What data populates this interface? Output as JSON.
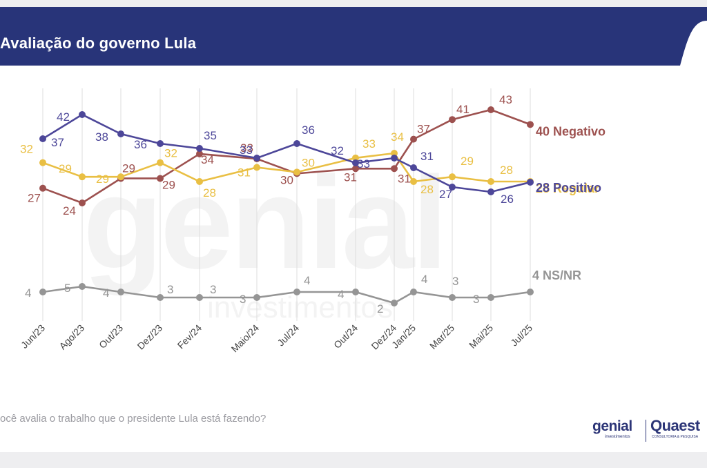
{
  "header": {
    "title": "Avaliação do governo Lula"
  },
  "footer": {
    "question": "ocê avalia o trabalho que o presidente Lula está fazendo?"
  },
  "logos": {
    "genial": "genial",
    "genial_sub": "investimentos",
    "quaest": "Quaest",
    "quaest_sub": "CONSULTORIA & PESQUISA"
  },
  "watermark": {
    "big": "genial",
    "small": "investimentos"
  },
  "colors": {
    "header": "#283479",
    "negativo": "#9d514f",
    "regular": "#e9bf43",
    "positivo": "#4d4799",
    "nsnr": "#959595",
    "gridline": "#dcdcdc"
  },
  "chart_data": {
    "type": "line",
    "x": [
      "Jun/23",
      "Ago/23",
      "Out/23",
      "Dez/23",
      "Fev/24",
      "Maio/24",
      "Jul/24",
      "Out/24",
      "Dez/24",
      "Jan/25",
      "Mar/25",
      "Mai/25",
      "Jul/25"
    ],
    "series": [
      {
        "key": "negativo",
        "name": "Negativo",
        "end_label": "40 Negativo",
        "points": [
          [
            "Jun/23",
            27
          ],
          [
            "Ago/23",
            24
          ],
          [
            "Out/23",
            29
          ],
          [
            "Dez/23",
            29
          ],
          [
            "Fev/24",
            34
          ],
          [
            "Maio/24",
            33
          ],
          [
            "Jul/24",
            30
          ],
          [
            "Out/24",
            31
          ],
          [
            "Dez/24",
            31
          ],
          [
            "Jan/25",
            37
          ],
          [
            "Mar/25",
            41
          ],
          [
            "Mai/25",
            43
          ],
          [
            "Jul/25",
            40
          ]
        ],
        "labels": [
          "27",
          "24",
          "29",
          "29",
          "34",
          "33",
          "30",
          "31",
          "31",
          "37",
          "41",
          "43"
        ]
      },
      {
        "key": "regular",
        "name": "Regular",
        "end_label": "28 Regular",
        "points": [
          [
            "Jun/23",
            32
          ],
          [
            "Ago/23",
            29
          ],
          [
            "Out/23",
            29
          ],
          [
            "Dez/23",
            32
          ],
          [
            "Fev/24",
            28
          ],
          [
            "Maio/24",
            31
          ],
          [
            "Jul/24",
            30
          ],
          [
            "Out/24",
            33
          ],
          [
            "Dez/24",
            34
          ],
          [
            "Jan/25",
            28
          ],
          [
            "Mar/25",
            29
          ],
          [
            "Mai/25",
            28
          ],
          [
            "Jul/25",
            28
          ]
        ],
        "labels": [
          "32",
          "29",
          "29",
          "32",
          "28",
          "31",
          "30",
          "33",
          "34",
          "28",
          "29",
          "28"
        ]
      },
      {
        "key": "positivo",
        "name": "Positivo",
        "end_label": "28 Positivo",
        "points": [
          [
            "Jun/23",
            37
          ],
          [
            "Ago/23",
            42
          ],
          [
            "Out/23",
            38
          ],
          [
            "Dez/23",
            36
          ],
          [
            "Fev/24",
            35
          ],
          [
            "Maio/24",
            33
          ],
          [
            "Jul/24",
            36
          ],
          [
            "Out/24",
            32
          ],
          [
            "Dez/24",
            33
          ],
          [
            "Jan/25",
            31
          ],
          [
            "Mar/25",
            27
          ],
          [
            "Mai/25",
            26
          ],
          [
            "Jul/25",
            28
          ]
        ],
        "labels": [
          "37",
          "42",
          "38",
          "36",
          "35",
          "33",
          "36",
          "32",
          "33",
          "31",
          "27",
          "26"
        ]
      },
      {
        "key": "nsnr",
        "name": "NS/NR",
        "end_label": "4 NS/NR",
        "points": [
          [
            "Jun/23",
            4
          ],
          [
            "Ago/23",
            5
          ],
          [
            "Out/23",
            4
          ],
          [
            "Dez/23",
            3
          ],
          [
            "Fev/24",
            3
          ],
          [
            "Maio/24",
            3
          ],
          [
            "Jul/24",
            4
          ],
          [
            "Out/24",
            4
          ],
          [
            "Dez/24",
            2
          ],
          [
            "Jan/25",
            4
          ],
          [
            "Mar/25",
            3
          ],
          [
            "Mai/25",
            3
          ],
          [
            "Jul/25",
            4
          ]
        ],
        "labels": [
          "4",
          "5",
          "4",
          "3",
          "3",
          "3",
          "4",
          "4",
          "2",
          "4",
          "3",
          "3"
        ]
      }
    ],
    "ylim": [
      0,
      45
    ],
    "grid": true,
    "legend": "end-of-line labels"
  }
}
